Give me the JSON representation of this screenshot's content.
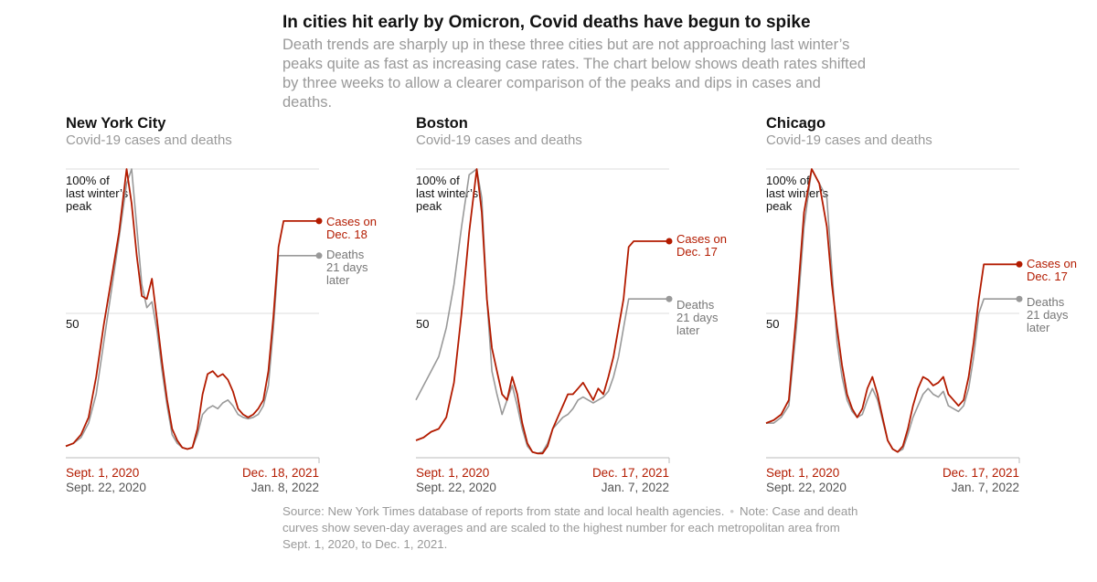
{
  "header": {
    "title": "In cities hit early by Omicron, Covid deaths have begun to spike",
    "subtitle": "Death trends are sharply up in these three cities but are not approaching last winter’s peaks quite as fast as increasing case rates. The chart below shows death rates shifted by three weeks to allow a clearer comparison of the peaks and dips in cases and deaths."
  },
  "footer": {
    "source": "Source: New York Times database of reports from state and local health agencies.",
    "note": "Note: Case and death curves show seven-day averages and are scaled to the highest number for each metropolitan area from Sept. 1, 2020, to Dec. 1, 2021."
  },
  "colors": {
    "cases": "#b31b00",
    "deaths": "#999999",
    "grid": "#dddddd"
  },
  "chart_data": [
    {
      "type": "line",
      "title": "New York City",
      "subtitle": "Covid-19 cases and deaths",
      "y_reference_label": "100% of last winter’s peak",
      "y_reference_lines": [
        "100% of",
        "last winter’s",
        "peak"
      ],
      "y_mid_label": "50",
      "ylim": [
        0,
        100
      ],
      "y_ticks": [
        50,
        100
      ],
      "x_labels": {
        "cases_start": "Sept. 1, 2020",
        "cases_end": "Dec. 18, 2021",
        "deaths_start": "Sept. 22, 2020",
        "deaths_end": "Jan. 8, 2022"
      },
      "cases_end_label": [
        "Cases on",
        "Dec. 18"
      ],
      "deaths_end_label": [
        "Deaths",
        "21 days",
        "later"
      ],
      "x": [
        0,
        0.03,
        0.06,
        0.09,
        0.12,
        0.15,
        0.18,
        0.21,
        0.24,
        0.26,
        0.28,
        0.3,
        0.32,
        0.34,
        0.36,
        0.38,
        0.4,
        0.42,
        0.44,
        0.46,
        0.48,
        0.5,
        0.52,
        0.54,
        0.56,
        0.58,
        0.6,
        0.62,
        0.64,
        0.66,
        0.68,
        0.7,
        0.72,
        0.74,
        0.76,
        0.78,
        0.8,
        0.82,
        0.84,
        0.86,
        0.88,
        0.9,
        0.92,
        0.94,
        0.96,
        0.98,
        1.0
      ],
      "series": [
        {
          "name": "Cases on Dec. 18",
          "values": [
            4,
            5,
            8,
            14,
            28,
            46,
            62,
            78,
            100,
            88,
            70,
            56,
            55,
            62,
            48,
            33,
            20,
            10,
            6,
            3.5,
            3,
            3.5,
            10,
            22,
            29,
            30,
            28,
            29,
            27,
            23,
            17,
            15,
            14,
            15,
            17,
            20,
            30,
            49,
            73,
            82,
            82,
            82,
            82,
            82,
            82,
            82,
            82
          ]
        },
        {
          "name": "Deaths 21 days later",
          "values": [
            4,
            5,
            7,
            12,
            22,
            40,
            58,
            76,
            95,
            100,
            80,
            60,
            52,
            54,
            44,
            30,
            18,
            8,
            5,
            3.5,
            3,
            3.5,
            8,
            15,
            17,
            18,
            17,
            19,
            20,
            18,
            15,
            14,
            13.5,
            14,
            15,
            18,
            25,
            45,
            70,
            70,
            70,
            70,
            70,
            70,
            70,
            70,
            70
          ]
        }
      ]
    },
    {
      "type": "line",
      "title": "Boston",
      "subtitle": "Covid-19 cases and deaths",
      "y_reference_label": "100% of last winter’s peak",
      "y_reference_lines": [
        "100% of",
        "last winter’s",
        "peak"
      ],
      "y_mid_label": "50",
      "ylim": [
        0,
        100
      ],
      "y_ticks": [
        50,
        100
      ],
      "x_labels": {
        "cases_start": "Sept. 1, 2020",
        "cases_end": "Dec. 17, 2021",
        "deaths_start": "Sept. 22, 2020",
        "deaths_end": "Jan. 7, 2022"
      },
      "cases_end_label": [
        "Cases on",
        "Dec. 17"
      ],
      "deaths_end_label": [
        "Deaths",
        "21 days",
        "later"
      ],
      "x": [
        0,
        0.03,
        0.06,
        0.09,
        0.12,
        0.15,
        0.18,
        0.21,
        0.24,
        0.26,
        0.28,
        0.3,
        0.32,
        0.34,
        0.36,
        0.38,
        0.4,
        0.42,
        0.44,
        0.46,
        0.48,
        0.5,
        0.52,
        0.54,
        0.56,
        0.58,
        0.6,
        0.62,
        0.64,
        0.66,
        0.68,
        0.7,
        0.72,
        0.74,
        0.76,
        0.78,
        0.8,
        0.82,
        0.84,
        0.86,
        0.88,
        0.9,
        0.92,
        0.94,
        0.96,
        0.98,
        1.0
      ],
      "series": [
        {
          "name": "Cases on Dec. 17",
          "values": [
            6,
            7,
            9,
            10,
            14,
            26,
            50,
            78,
            100,
            85,
            55,
            38,
            30,
            22,
            20,
            28,
            22,
            12,
            5,
            2,
            1.5,
            1.5,
            4,
            10,
            14,
            18,
            22,
            22,
            24,
            26,
            23,
            20,
            24,
            22,
            28,
            35,
            45,
            55,
            73,
            75,
            75,
            75,
            75,
            75,
            75,
            75,
            75
          ]
        },
        {
          "name": "Deaths 21 days later",
          "values": [
            20,
            25,
            30,
            35,
            45,
            60,
            80,
            98,
            100,
            90,
            55,
            30,
            22,
            15,
            20,
            25,
            18,
            10,
            4,
            2,
            1.5,
            2,
            5,
            10,
            12,
            14,
            15,
            17,
            20,
            21,
            20,
            19,
            20,
            21,
            23,
            28,
            35,
            45,
            55,
            55,
            55,
            55,
            55,
            55,
            55,
            55,
            55
          ]
        }
      ]
    },
    {
      "type": "line",
      "title": "Chicago",
      "subtitle": "Covid-19 cases and deaths",
      "y_reference_label": "100% of last winter’s peak",
      "y_reference_lines": [
        "100% of",
        "last winter’s",
        "peak"
      ],
      "y_mid_label": "50",
      "ylim": [
        0,
        100
      ],
      "y_ticks": [
        50,
        100
      ],
      "x_labels": {
        "cases_start": "Sept. 1, 2020",
        "cases_end": "Dec. 17, 2021",
        "deaths_start": "Sept. 22, 2020",
        "deaths_end": "Jan. 7, 2022"
      },
      "cases_end_label": [
        "Cases on",
        "Dec. 17"
      ],
      "deaths_end_label": [
        "Deaths",
        "21 days",
        "later"
      ],
      "x": [
        0,
        0.03,
        0.06,
        0.09,
        0.12,
        0.15,
        0.18,
        0.21,
        0.24,
        0.26,
        0.28,
        0.3,
        0.32,
        0.34,
        0.36,
        0.38,
        0.4,
        0.42,
        0.44,
        0.46,
        0.48,
        0.5,
        0.52,
        0.54,
        0.56,
        0.58,
        0.6,
        0.62,
        0.64,
        0.66,
        0.68,
        0.7,
        0.72,
        0.74,
        0.76,
        0.78,
        0.8,
        0.82,
        0.84,
        0.86,
        0.88,
        0.9,
        0.92,
        0.94,
        0.96,
        0.98,
        1.0
      ],
      "series": [
        {
          "name": "Cases on Dec. 17",
          "values": [
            12,
            13,
            15,
            20,
            50,
            85,
            100,
            95,
            80,
            60,
            45,
            32,
            22,
            17,
            14,
            17,
            24,
            28,
            22,
            14,
            6,
            3,
            2,
            4,
            10,
            18,
            24,
            28,
            27,
            25,
            26,
            28,
            22,
            20,
            18,
            20,
            28,
            40,
            55,
            67,
            67,
            67,
            67,
            67,
            67,
            67,
            67
          ]
        },
        {
          "name": "Deaths 21 days later",
          "values": [
            12,
            12,
            14,
            18,
            45,
            80,
            100,
            95,
            90,
            65,
            40,
            28,
            20,
            16,
            14,
            15,
            20,
            24,
            20,
            13,
            6,
            3,
            2,
            3,
            8,
            14,
            18,
            22,
            24,
            22,
            21,
            23,
            18,
            17,
            16,
            18,
            24,
            35,
            50,
            55,
            55,
            55,
            55,
            55,
            55,
            55,
            55
          ]
        }
      ]
    }
  ]
}
